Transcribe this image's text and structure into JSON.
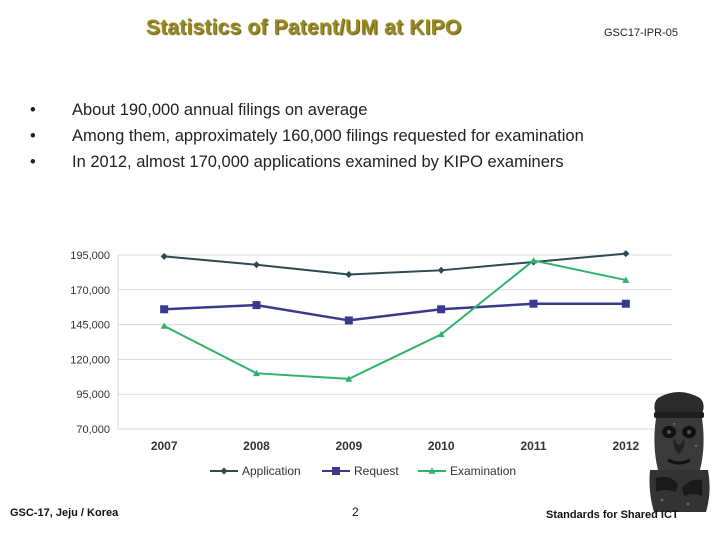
{
  "header": {
    "title": "Statistics of Patent/UM at KIPO",
    "doc_id": "GSC17-IPR-05"
  },
  "bullets": [
    "About 190,000 annual filings on average",
    "Among them, approximately 160,000 filings requested for examination",
    "In 2012, almost 170,000 applications examined by KIPO examiners"
  ],
  "bullet_glyph": "•",
  "chart_data": {
    "type": "line",
    "categories": [
      "2007",
      "2008",
      "2009",
      "2010",
      "2011",
      "2012"
    ],
    "ylim": [
      70000,
      195000
    ],
    "yticks": [
      195000,
      170000,
      145000,
      120000,
      95000,
      70000
    ],
    "ytick_labels": [
      "195,000",
      "170,000",
      "145,000",
      "120,000",
      "95,000",
      "70,000"
    ],
    "grid": true,
    "legend_position": "bottom",
    "series": [
      {
        "name": "Application",
        "color": "#2d4a52",
        "marker": "diamond",
        "values": [
          194000,
          188000,
          181000,
          184000,
          190000,
          196000
        ]
      },
      {
        "name": "Request",
        "color": "#3a3a8c",
        "marker": "square",
        "values": [
          156000,
          159000,
          148000,
          156000,
          160000,
          160000
        ]
      },
      {
        "name": "Examination",
        "color": "#2db36a",
        "marker": "triangle",
        "values": [
          144000,
          110000,
          106000,
          138000,
          191000,
          177000
        ]
      }
    ]
  },
  "footer": {
    "left": "GSC-17, Jeju / Korea",
    "page": "2",
    "right": "Standards for Shared ICT"
  }
}
